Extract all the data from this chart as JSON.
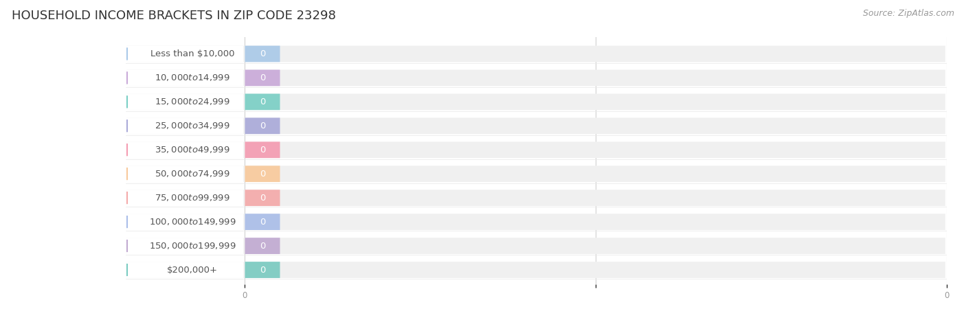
{
  "title": "HOUSEHOLD INCOME BRACKETS IN ZIP CODE 23298",
  "source": "Source: ZipAtlas.com",
  "categories": [
    "Less than $10,000",
    "$10,000 to $14,999",
    "$15,000 to $24,999",
    "$25,000 to $34,999",
    "$35,000 to $49,999",
    "$50,000 to $74,999",
    "$75,000 to $99,999",
    "$100,000 to $149,999",
    "$150,000 to $199,999",
    "$200,000+"
  ],
  "values": [
    0,
    0,
    0,
    0,
    0,
    0,
    0,
    0,
    0,
    0
  ],
  "bar_colors": [
    "#a8c8e8",
    "#c8a8d8",
    "#78cec4",
    "#a8a8d8",
    "#f49ab0",
    "#f8c89a",
    "#f4a8a8",
    "#a8bce8",
    "#c0a8d0",
    "#78cac0"
  ],
  "title_fontsize": 13,
  "label_fontsize": 9.5,
  "value_fontsize": 9.5,
  "source_fontsize": 9,
  "background_color": "#ffffff",
  "bar_bg_color": "#f0f0f0",
  "label_area_color": "#f8f8f8",
  "grid_color": "#d0d0d0",
  "text_color": "#555555",
  "value_color_in_bar": "#ffffff",
  "axis_label_color": "#999999"
}
